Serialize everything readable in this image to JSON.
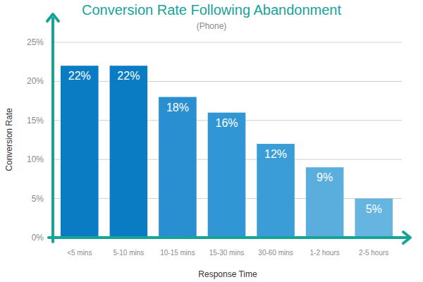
{
  "chart_data": {
    "type": "bar",
    "title": "Conversion Rate Following Abandonment",
    "subtitle": "(Phone)",
    "x_label": "Response Time",
    "y_label": "Conversion Rate",
    "categories": [
      "<5 mins",
      "5-10 mins",
      "10-15 mins",
      "15-30 mins",
      "30-60 mins",
      "1-2 hours",
      "2-5 hours"
    ],
    "values": [
      22,
      22,
      18,
      16,
      12,
      9,
      5
    ],
    "value_labels": [
      "22%",
      "22%",
      "18%",
      "16%",
      "12%",
      "9%",
      "5%"
    ],
    "colors": [
      "#0a7cc4",
      "#0a7cc4",
      "#2a8fd0",
      "#3196d4",
      "#3a9dd7",
      "#5aaedd",
      "#66b5e0"
    ],
    "ylim": [
      0,
      25
    ],
    "yticks": [
      {
        "value": 0,
        "label": "0%"
      },
      {
        "value": 5,
        "label": "5%"
      },
      {
        "value": 10,
        "label": "10%"
      },
      {
        "value": 15,
        "label": "15%"
      },
      {
        "value": 20,
        "label": "20%"
      },
      {
        "value": 25,
        "label": "25%"
      }
    ],
    "grid": true,
    "data_labels": true
  }
}
